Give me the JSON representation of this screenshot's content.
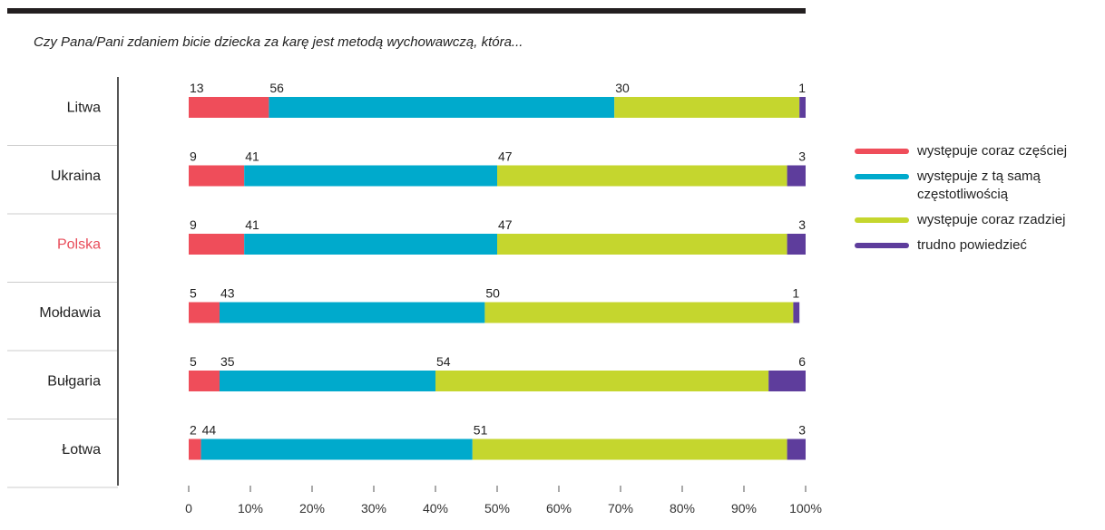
{
  "chart_data": {
    "type": "bar",
    "orientation": "horizontal",
    "stacked": true,
    "title": "",
    "subtitle": "Czy Pana/Pani zdaniem bicie dziecka za karę jest metodą wychowawczą, która...",
    "xlabel": "",
    "ylabel": "",
    "xlim": [
      0,
      100
    ],
    "x_ticks": [
      "0",
      "10%",
      "20%",
      "30%",
      "40%",
      "50%",
      "60%",
      "70%",
      "80%",
      "90%",
      "100%"
    ],
    "categories": [
      "Litwa",
      "Ukraina",
      "Polska",
      "Mołdawia",
      "Bułgaria",
      "Łotwa"
    ],
    "highlight_category": "Polska",
    "highlight_color": "#e84c5a",
    "series": [
      {
        "name": "występuje coraz częściej",
        "color": "#ef4d5a",
        "values": [
          13,
          9,
          9,
          5,
          5,
          2
        ]
      },
      {
        "name": "występuje z tą samą częstotliwością",
        "color": "#00aacc",
        "values": [
          56,
          41,
          41,
          43,
          35,
          44
        ]
      },
      {
        "name": "występuje coraz rzadziej",
        "color": "#c5d62e",
        "values": [
          30,
          47,
          47,
          50,
          54,
          51
        ]
      },
      {
        "name": "trudno powiedzieć",
        "color": "#5e3d9c",
        "values": [
          1,
          3,
          3,
          1,
          6,
          3
        ]
      }
    ],
    "legend_position": "right",
    "grid": false
  }
}
